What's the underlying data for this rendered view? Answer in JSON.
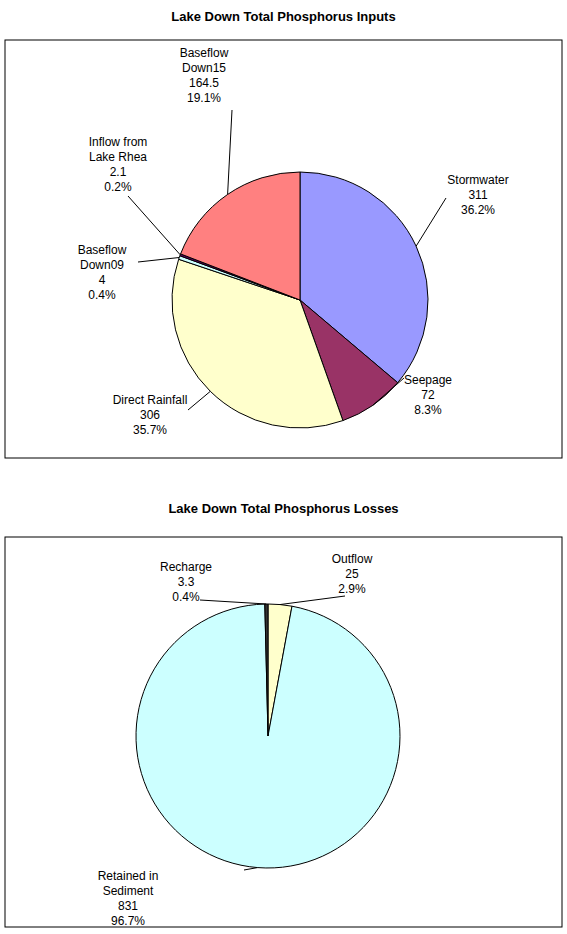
{
  "chart_data": [
    {
      "type": "pie",
      "title": "Lake Down Total Phosphorus Inputs",
      "categories": [
        "Stormwater",
        "Seepage",
        "Direct Rainfall",
        "Baseflow Down09",
        "Inflow from Lake Rhea",
        "Baseflow Down15"
      ],
      "values": [
        311,
        72,
        306,
        4,
        2.1,
        164.5
      ],
      "percent_labels": [
        "36.2%",
        "8.3%",
        "35.7%",
        "0.4%",
        "0.2%",
        "19.1%"
      ],
      "colors": [
        "#9999ff",
        "#993366",
        "#ffffcc",
        "#ccffff",
        "#660066",
        "#ff8080"
      ],
      "data_labels": true
    },
    {
      "type": "pie",
      "title": "Lake Down Total Phosphorus Losses",
      "categories": [
        "Outflow",
        "Retained in Sediment",
        "Recharge"
      ],
      "values": [
        25,
        831,
        3.3
      ],
      "percent_labels": [
        "2.9%",
        "96.7%",
        "0.4%"
      ],
      "colors": [
        "#ffffcc",
        "#ccffff",
        "#333333"
      ],
      "data_labels": true
    }
  ]
}
